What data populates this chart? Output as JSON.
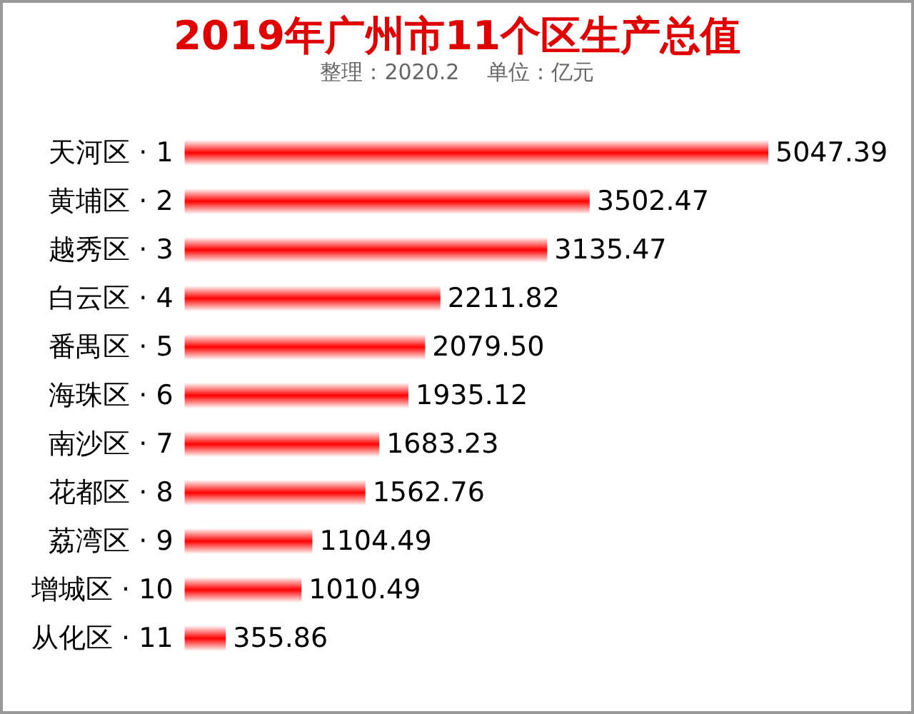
{
  "chart_data": {
    "type": "bar",
    "orientation": "horizontal",
    "title": "2019年广州市11个区生产总值",
    "subtitle": "整理：2020.2    单位：亿元",
    "categories": [
      "天河区 · 1",
      "黄埔区 · 2",
      "越秀区 · 3",
      "白云区 · 4",
      "番禺区 · 5",
      "海珠区 · 6",
      "南沙区 · 7",
      "花都区 · 8",
      "荔湾区 · 9",
      "增城区 · 10",
      "从化区 · 11"
    ],
    "values": [
      5047.39,
      3502.47,
      3135.47,
      2211.82,
      2079.5,
      1935.12,
      1683.23,
      1562.76,
      1104.49,
      1010.49,
      355.86
    ],
    "value_labels": [
      "5047.39",
      "3502.47",
      "3135.47",
      "2211.82",
      "2079.50",
      "1935.12",
      "1683.23",
      "1562.76",
      "1104.49",
      "1010.49",
      "355.86"
    ],
    "color": "#ff0000"
  }
}
